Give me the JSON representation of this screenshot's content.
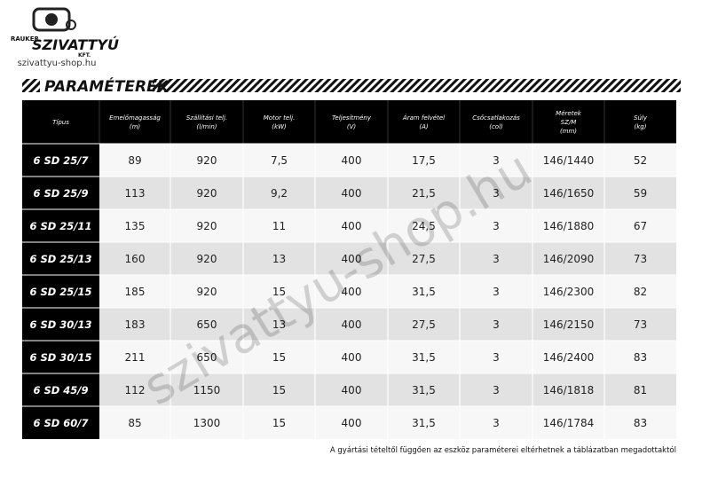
{
  "logo": {
    "top": "RAUKER",
    "brand": "SZIVATTYÚ",
    "suffix": "KFT.",
    "site": "szivattyu-shop.hu"
  },
  "heading": "PARAMÉTEREK",
  "table": {
    "header": [
      [
        "Típus"
      ],
      [
        "Emelőmagasság",
        "(m)"
      ],
      [
        "Szállítási telj.",
        "(l/min)"
      ],
      [
        "Motor telj.",
        "(kW)"
      ],
      [
        "Teljesítmény",
        "(V)"
      ],
      [
        "Áram felvétel",
        "(A)"
      ],
      [
        "Csőcsatlakozás",
        "(col)"
      ],
      [
        "Méretek",
        "SZ/M",
        "(mm)"
      ],
      [
        "Súly",
        "(kg)"
      ]
    ],
    "rows": [
      [
        "6 SD 25/7",
        "89",
        "920",
        "7,5",
        "400",
        "17,5",
        "3",
        "146/1440",
        "52"
      ],
      [
        "6 SD 25/9",
        "113",
        "920",
        "9,2",
        "400",
        "21,5",
        "3",
        "146/1650",
        "59"
      ],
      [
        "6 SD 25/11",
        "135",
        "920",
        "11",
        "400",
        "24,5",
        "3",
        "146/1880",
        "67"
      ],
      [
        "6 SD 25/13",
        "160",
        "920",
        "13",
        "400",
        "27,5",
        "3",
        "146/2090",
        "73"
      ],
      [
        "6 SD 25/15",
        "185",
        "920",
        "15",
        "400",
        "31,5",
        "3",
        "146/2300",
        "82"
      ],
      [
        "6 SD 30/13",
        "183",
        "650",
        "13",
        "400",
        "27,5",
        "3",
        "146/2150",
        "73"
      ],
      [
        "6 SD 30/15",
        "211",
        "650",
        "15",
        "400",
        "31,5",
        "3",
        "146/2400",
        "83"
      ],
      [
        "6 SD 45/9",
        "112",
        "1150",
        "15",
        "400",
        "31,5",
        "3",
        "146/1818",
        "81"
      ],
      [
        "6 SD 60/7",
        "85",
        "1300",
        "15",
        "400",
        "31,5",
        "3",
        "146/1784",
        "83"
      ]
    ]
  },
  "watermark": "szivattyu-shop.hu",
  "note": "A gyártási tételtől függően az eszköz paraméterei eltérhetnek a táblázatban megadottaktól"
}
